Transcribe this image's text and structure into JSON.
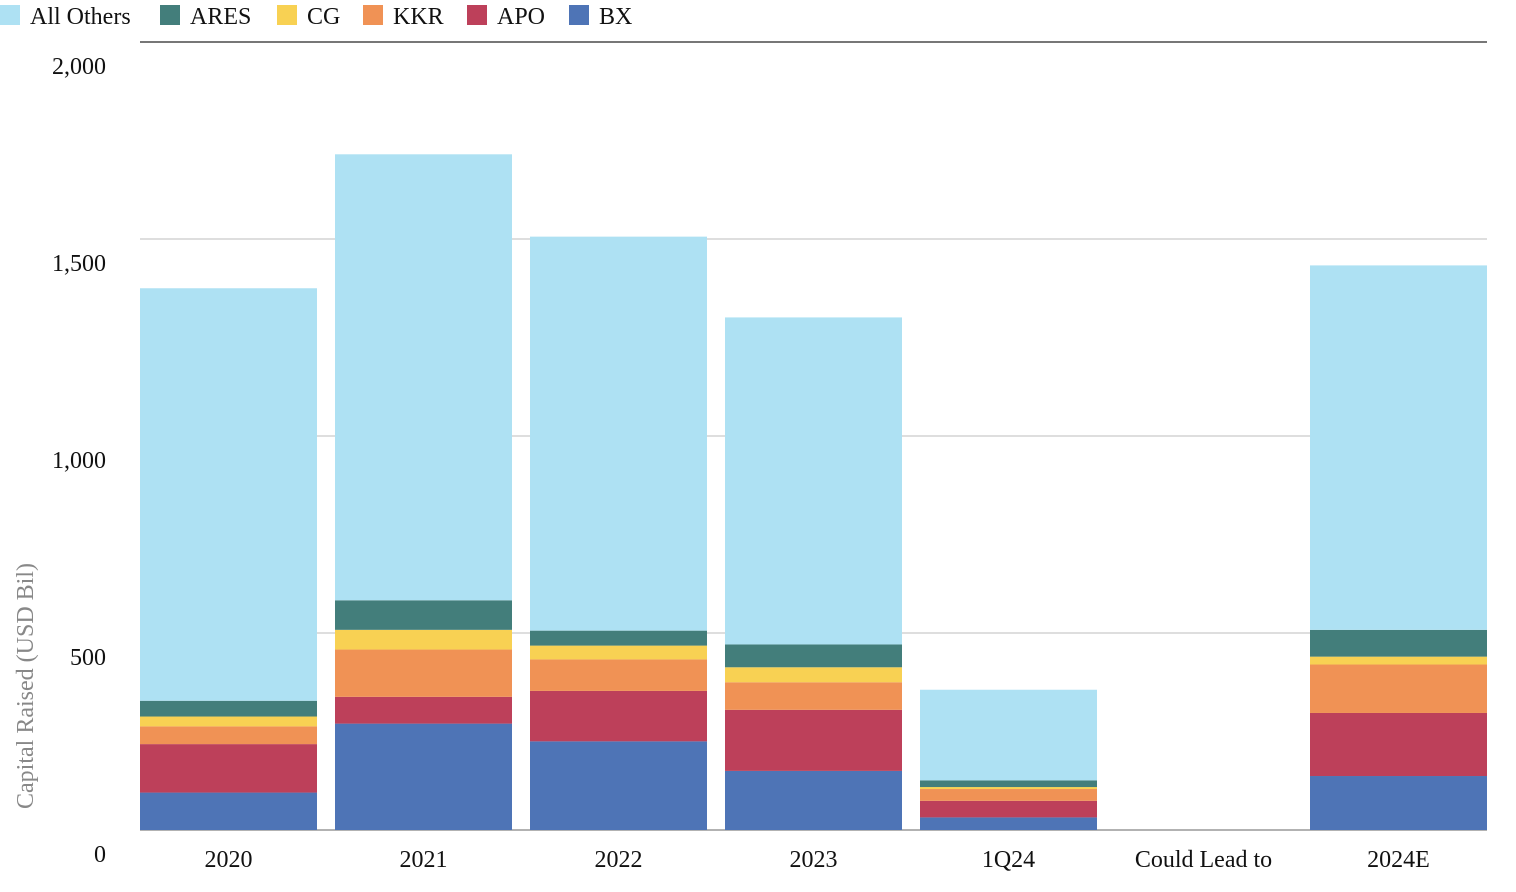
{
  "chart_data": {
    "type": "bar",
    "stacked": true,
    "title": "",
    "xlabel": "",
    "ylabel": "Capital Raised (USD Bil)",
    "ylim": [
      0,
      2000
    ],
    "yticks": [
      0,
      500,
      1000,
      1500,
      2000
    ],
    "ytick_labels": [
      "0",
      "500",
      "1,000",
      "1,500",
      "2,000"
    ],
    "grid": true,
    "legend_position": "top-left",
    "categories": [
      "2020",
      "2021",
      "2022",
      "2023",
      "1Q24",
      "Could Lead to",
      "2024E"
    ],
    "series": [
      {
        "name": "BX",
        "color": "#4e74b6",
        "values": [
          95,
          270,
          225,
          150,
          32,
          0,
          137
        ]
      },
      {
        "name": "APO",
        "color": "#bd405a",
        "values": [
          123,
          68,
          128,
          155,
          42,
          0,
          160
        ]
      },
      {
        "name": "KKR",
        "color": "#f09255",
        "values": [
          45,
          120,
          80,
          70,
          30,
          0,
          123
        ]
      },
      {
        "name": "CG",
        "color": "#f8d153",
        "values": [
          25,
          50,
          35,
          38,
          5,
          0,
          20
        ]
      },
      {
        "name": "ARES",
        "color": "#437e7b",
        "values": [
          40,
          75,
          38,
          58,
          17,
          0,
          68
        ]
      },
      {
        "name": "All Others",
        "color": "#aee1f3",
        "values": [
          1047,
          1132,
          1000,
          830,
          230,
          0,
          925
        ]
      }
    ],
    "legend_order": [
      "All Others",
      "ARES",
      "CG",
      "KKR",
      "APO",
      "BX"
    ]
  }
}
